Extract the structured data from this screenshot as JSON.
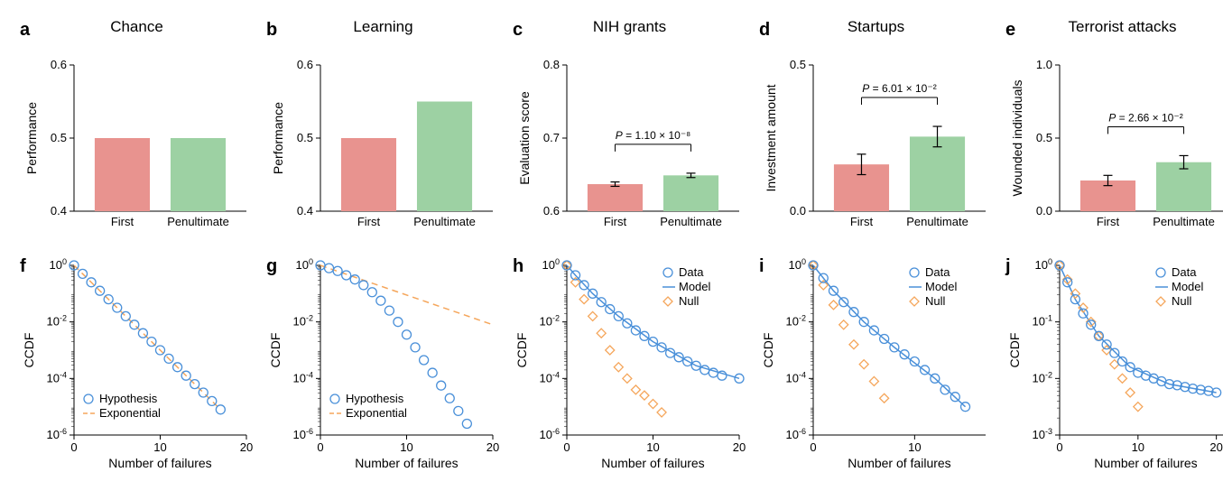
{
  "colors": {
    "bar_first": "#e8938f",
    "bar_penult": "#9dd1a3",
    "data_blue": "#4a90d9",
    "model_orange": "#f5a65b",
    "axis": "#000000",
    "bg": "#ffffff"
  },
  "fonts": {
    "title_size": 17,
    "label_size": 14,
    "tick_size": 13,
    "panel_label_size": 20
  },
  "panels": {
    "a": {
      "label": "a",
      "title": "Chance",
      "ylabel": "Performance",
      "ylim": [
        0.4,
        0.6
      ],
      "yticks": [
        0.4,
        0.5,
        0.6
      ],
      "cats": [
        "First",
        "Penultimate"
      ],
      "values": [
        0.5,
        0.5
      ],
      "errors": null,
      "pval": null,
      "bar_colors": [
        "#e8938f",
        "#9dd1a3"
      ]
    },
    "b": {
      "label": "b",
      "title": "Learning",
      "ylabel": "Performance",
      "ylim": [
        0.4,
        0.6
      ],
      "yticks": [
        0.4,
        0.5,
        0.6
      ],
      "cats": [
        "First",
        "Penultimate"
      ],
      "values": [
        0.5,
        0.55
      ],
      "errors": null,
      "pval": null,
      "bar_colors": [
        "#e8938f",
        "#9dd1a3"
      ]
    },
    "c": {
      "label": "c",
      "title": "NIH grants",
      "ylabel": "Evaluation score",
      "ylim": [
        0.6,
        0.8
      ],
      "yticks": [
        0.6,
        0.7,
        0.8
      ],
      "cats": [
        "First",
        "Penultimate"
      ],
      "values": [
        0.637,
        0.649
      ],
      "errors": [
        0.003,
        0.003
      ],
      "pval": "P = 1.10 × 10⁻⁸",
      "bar_colors": [
        "#e8938f",
        "#9dd1a3"
      ]
    },
    "d": {
      "label": "d",
      "title": "Startups",
      "ylabel": "Investment amount",
      "ylim": [
        0.0,
        0.5
      ],
      "yticks": [
        0.0,
        0.5
      ],
      "cats": [
        "First",
        "Penultimate"
      ],
      "values": [
        0.16,
        0.255
      ],
      "errors": [
        0.035,
        0.035
      ],
      "pval": "P = 6.01 × 10⁻²",
      "bar_colors": [
        "#e8938f",
        "#9dd1a3"
      ]
    },
    "e": {
      "label": "e",
      "title": "Terrorist attacks",
      "ylabel": "Wounded individuals",
      "ylim": [
        0.0,
        1.0
      ],
      "yticks": [
        0.0,
        0.5,
        1.0
      ],
      "cats": [
        "First",
        "Penultimate"
      ],
      "values": [
        0.21,
        0.335
      ],
      "errors": [
        0.035,
        0.045
      ],
      "pval": "P = 2.66 × 10⁻²",
      "bar_colors": [
        "#e8938f",
        "#9dd1a3"
      ]
    },
    "f": {
      "label": "f",
      "xlabel": "Number of failures",
      "ylabel": "CCDF",
      "xlim": [
        0,
        20
      ],
      "xticks": [
        0,
        10,
        20
      ],
      "ylim_exp": [
        -6,
        0
      ],
      "ytick_exp": [
        -6,
        -4,
        -2,
        0
      ],
      "legend": [
        {
          "marker": "circle",
          "color": "#4a90d9",
          "label": "Hypothesis"
        },
        {
          "marker": "dash",
          "color": "#f5a65b",
          "label": "Exponential"
        }
      ],
      "data_hyp": [
        [
          0,
          0
        ],
        [
          1,
          -0.3
        ],
        [
          2,
          -0.6
        ],
        [
          3,
          -0.9
        ],
        [
          4,
          -1.2
        ],
        [
          5,
          -1.5
        ],
        [
          6,
          -1.8
        ],
        [
          7,
          -2.1
        ],
        [
          8,
          -2.4
        ],
        [
          9,
          -2.7
        ],
        [
          10,
          -3.0
        ],
        [
          11,
          -3.3
        ],
        [
          12,
          -3.6
        ],
        [
          13,
          -3.9
        ],
        [
          14,
          -4.2
        ],
        [
          15,
          -4.5
        ],
        [
          16,
          -4.8
        ],
        [
          17,
          -5.1
        ]
      ],
      "exp_line": [
        [
          0,
          0
        ],
        [
          17,
          -5.1
        ]
      ],
      "exp_dash": true
    },
    "g": {
      "label": "g",
      "xlabel": "Number of failures",
      "ylabel": "CCDF",
      "xlim": [
        0,
        20
      ],
      "xticks": [
        0,
        10,
        20
      ],
      "ylim_exp": [
        -6,
        0
      ],
      "ytick_exp": [
        -6,
        -4,
        -2,
        0
      ],
      "legend": [
        {
          "marker": "circle",
          "color": "#4a90d9",
          "label": "Hypothesis"
        },
        {
          "marker": "dash",
          "color": "#f5a65b",
          "label": "Exponential"
        }
      ],
      "data_hyp": [
        [
          0,
          0
        ],
        [
          1,
          -0.1
        ],
        [
          2,
          -0.2
        ],
        [
          3,
          -0.35
        ],
        [
          4,
          -0.5
        ],
        [
          5,
          -0.7
        ],
        [
          6,
          -0.95
        ],
        [
          7,
          -1.25
        ],
        [
          8,
          -1.6
        ],
        [
          9,
          -2.0
        ],
        [
          10,
          -2.45
        ],
        [
          11,
          -2.9
        ],
        [
          12,
          -3.35
        ],
        [
          13,
          -3.8
        ],
        [
          14,
          -4.25
        ],
        [
          15,
          -4.7
        ],
        [
          16,
          -5.15
        ],
        [
          17,
          -5.6
        ]
      ],
      "exp_line": [
        [
          0,
          0
        ],
        [
          20,
          -2.1
        ]
      ],
      "exp_dash": true
    },
    "h": {
      "label": "h",
      "xlabel": "Number of failures",
      "ylabel": "CCDF",
      "xlim": [
        0,
        20
      ],
      "xticks": [
        0,
        10,
        20
      ],
      "ylim_exp": [
        -6,
        0
      ],
      "ytick_exp": [
        -6,
        -4,
        -2,
        0
      ],
      "legend": [
        {
          "marker": "circle",
          "color": "#4a90d9",
          "label": "Data"
        },
        {
          "marker": "line",
          "color": "#4a90d9",
          "label": "Model"
        },
        {
          "marker": "diamond",
          "color": "#f5a65b",
          "label": "Null"
        }
      ],
      "data_pts": [
        [
          0,
          0
        ],
        [
          1,
          -0.35
        ],
        [
          2,
          -0.7
        ],
        [
          3,
          -1.0
        ],
        [
          4,
          -1.3
        ],
        [
          5,
          -1.55
        ],
        [
          6,
          -1.8
        ],
        [
          7,
          -2.05
        ],
        [
          8,
          -2.3
        ],
        [
          9,
          -2.5
        ],
        [
          10,
          -2.7
        ],
        [
          11,
          -2.9
        ],
        [
          12,
          -3.1
        ],
        [
          13,
          -3.25
        ],
        [
          14,
          -3.4
        ],
        [
          15,
          -3.55
        ],
        [
          16,
          -3.7
        ],
        [
          17,
          -3.8
        ],
        [
          18,
          -3.9
        ],
        [
          20,
          -4.0
        ]
      ],
      "model_line": [
        [
          0,
          0
        ],
        [
          1,
          -0.35
        ],
        [
          3,
          -1.0
        ],
        [
          6,
          -1.8
        ],
        [
          10,
          -2.7
        ],
        [
          15,
          -3.55
        ],
        [
          20,
          -4.0
        ]
      ],
      "null_pts": [
        [
          0,
          0
        ],
        [
          1,
          -0.6
        ],
        [
          2,
          -1.2
        ],
        [
          3,
          -1.8
        ],
        [
          4,
          -2.4
        ],
        [
          5,
          -3.0
        ],
        [
          6,
          -3.6
        ],
        [
          7,
          -4.0
        ],
        [
          8,
          -4.4
        ],
        [
          9,
          -4.6
        ],
        [
          10,
          -4.9
        ],
        [
          11,
          -5.2
        ]
      ]
    },
    "i": {
      "label": "i",
      "xlabel": "Number of failures",
      "ylabel": "CCDF",
      "xlim": [
        0,
        17
      ],
      "xticks": [
        0,
        10
      ],
      "ylim_exp": [
        -6,
        0
      ],
      "ytick_exp": [
        -6,
        -4,
        -2,
        0
      ],
      "legend": [
        {
          "marker": "circle",
          "color": "#4a90d9",
          "label": "Data"
        },
        {
          "marker": "line",
          "color": "#4a90d9",
          "label": "Model"
        },
        {
          "marker": "diamond",
          "color": "#f5a65b",
          "label": "Null"
        }
      ],
      "data_pts": [
        [
          0,
          0
        ],
        [
          1,
          -0.45
        ],
        [
          2,
          -0.9
        ],
        [
          3,
          -1.3
        ],
        [
          4,
          -1.65
        ],
        [
          5,
          -2.0
        ],
        [
          6,
          -2.3
        ],
        [
          7,
          -2.6
        ],
        [
          8,
          -2.9
        ],
        [
          9,
          -3.15
        ],
        [
          10,
          -3.4
        ],
        [
          11,
          -3.7
        ],
        [
          12,
          -4.0
        ],
        [
          13,
          -4.4
        ],
        [
          14,
          -4.65
        ],
        [
          15,
          -5.0
        ]
      ],
      "model_line": [
        [
          0,
          0
        ],
        [
          2,
          -0.9
        ],
        [
          5,
          -2.0
        ],
        [
          8,
          -2.9
        ],
        [
          12,
          -4.0
        ],
        [
          15,
          -5.0
        ]
      ],
      "null_pts": [
        [
          0,
          0
        ],
        [
          1,
          -0.7
        ],
        [
          2,
          -1.4
        ],
        [
          3,
          -2.1
        ],
        [
          4,
          -2.8
        ],
        [
          5,
          -3.5
        ],
        [
          6,
          -4.1
        ],
        [
          7,
          -4.7
        ]
      ]
    },
    "j": {
      "label": "j",
      "xlabel": "Number of failures",
      "ylabel": "CCDF",
      "xlim": [
        0,
        22
      ],
      "xticks": [
        0,
        10,
        20
      ],
      "ylim_exp": [
        -3,
        0
      ],
      "ytick_exp": [
        -3,
        -2,
        -1,
        0
      ],
      "legend": [
        {
          "marker": "circle",
          "color": "#4a90d9",
          "label": "Data"
        },
        {
          "marker": "line",
          "color": "#4a90d9",
          "label": "Model"
        },
        {
          "marker": "diamond",
          "color": "#f5a65b",
          "label": "Null"
        }
      ],
      "data_pts": [
        [
          0,
          0
        ],
        [
          1,
          -0.3
        ],
        [
          2,
          -0.6
        ],
        [
          3,
          -0.85
        ],
        [
          4,
          -1.05
        ],
        [
          5,
          -1.25
        ],
        [
          6,
          -1.4
        ],
        [
          7,
          -1.55
        ],
        [
          8,
          -1.7
        ],
        [
          9,
          -1.8
        ],
        [
          10,
          -1.9
        ],
        [
          11,
          -1.95
        ],
        [
          12,
          -2.0
        ],
        [
          13,
          -2.05
        ],
        [
          14,
          -2.1
        ],
        [
          15,
          -2.12
        ],
        [
          16,
          -2.15
        ],
        [
          17,
          -2.18
        ],
        [
          18,
          -2.2
        ],
        [
          19,
          -2.22
        ],
        [
          20,
          -2.25
        ]
      ],
      "model_line": [
        [
          0,
          0
        ],
        [
          2,
          -0.6
        ],
        [
          5,
          -1.25
        ],
        [
          9,
          -1.8
        ],
        [
          14,
          -2.1
        ],
        [
          20,
          -2.25
        ]
      ],
      "null_pts": [
        [
          0,
          0
        ],
        [
          1,
          -0.25
        ],
        [
          2,
          -0.5
        ],
        [
          3,
          -0.75
        ],
        [
          4,
          -1.0
        ],
        [
          5,
          -1.25
        ],
        [
          6,
          -1.5
        ],
        [
          7,
          -1.75
        ],
        [
          8,
          -2.0
        ],
        [
          9,
          -2.25
        ],
        [
          10,
          -2.5
        ]
      ]
    }
  }
}
